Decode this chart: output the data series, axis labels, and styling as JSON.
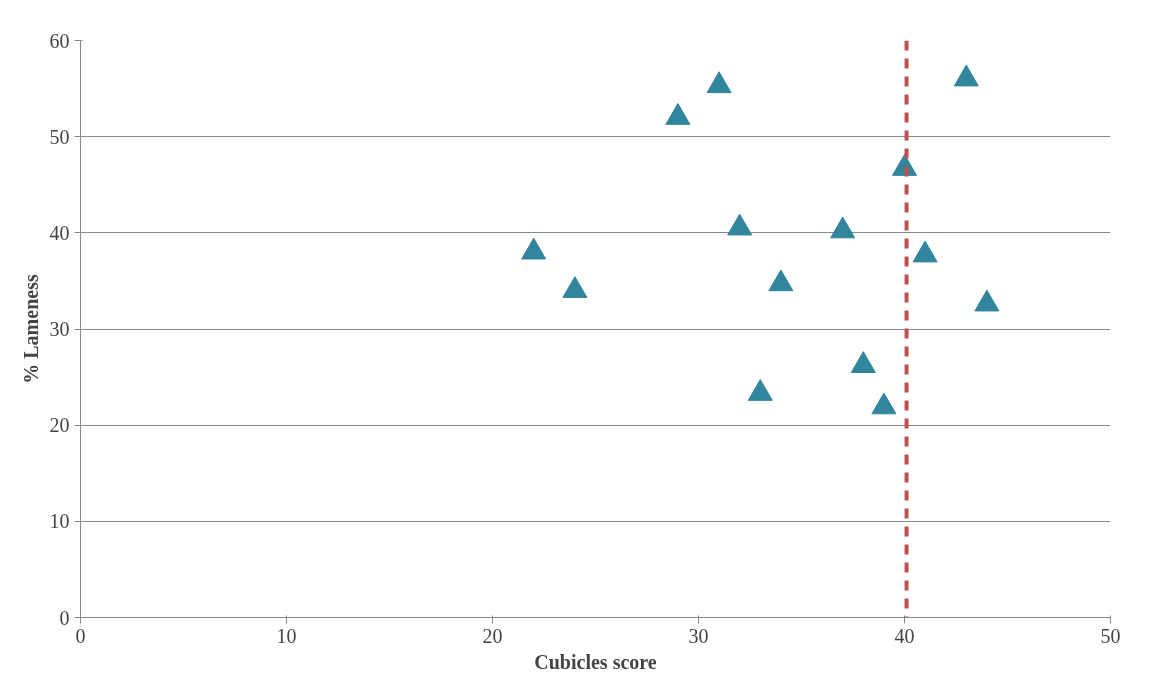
{
  "chart_data": {
    "type": "scatter",
    "xlabel": "Cubicles score",
    "ylabel": "% Lameness",
    "x": [
      22,
      24,
      29,
      31,
      32,
      33,
      34,
      37,
      38,
      39,
      40,
      41,
      43,
      44
    ],
    "series": [
      {
        "color": "#31859c",
        "values": [
          38,
          34,
          52,
          55.3,
          40.5,
          23.3,
          34.7,
          40.2,
          26.2,
          21.9,
          46.7,
          37.7,
          56,
          32.6
        ]
      }
    ],
    "xlim": [
      0,
      50
    ],
    "ylim": [
      0,
      60
    ],
    "xticks": [
      0,
      10,
      20,
      30,
      40,
      50
    ],
    "yticks": [
      0,
      10,
      20,
      30,
      40,
      50,
      60
    ],
    "grid": "y",
    "marker": "triangle",
    "ref_lines": [
      {
        "axis": "x",
        "value": 40.1,
        "color": "#c0504d",
        "line_style": "dashed"
      }
    ]
  }
}
